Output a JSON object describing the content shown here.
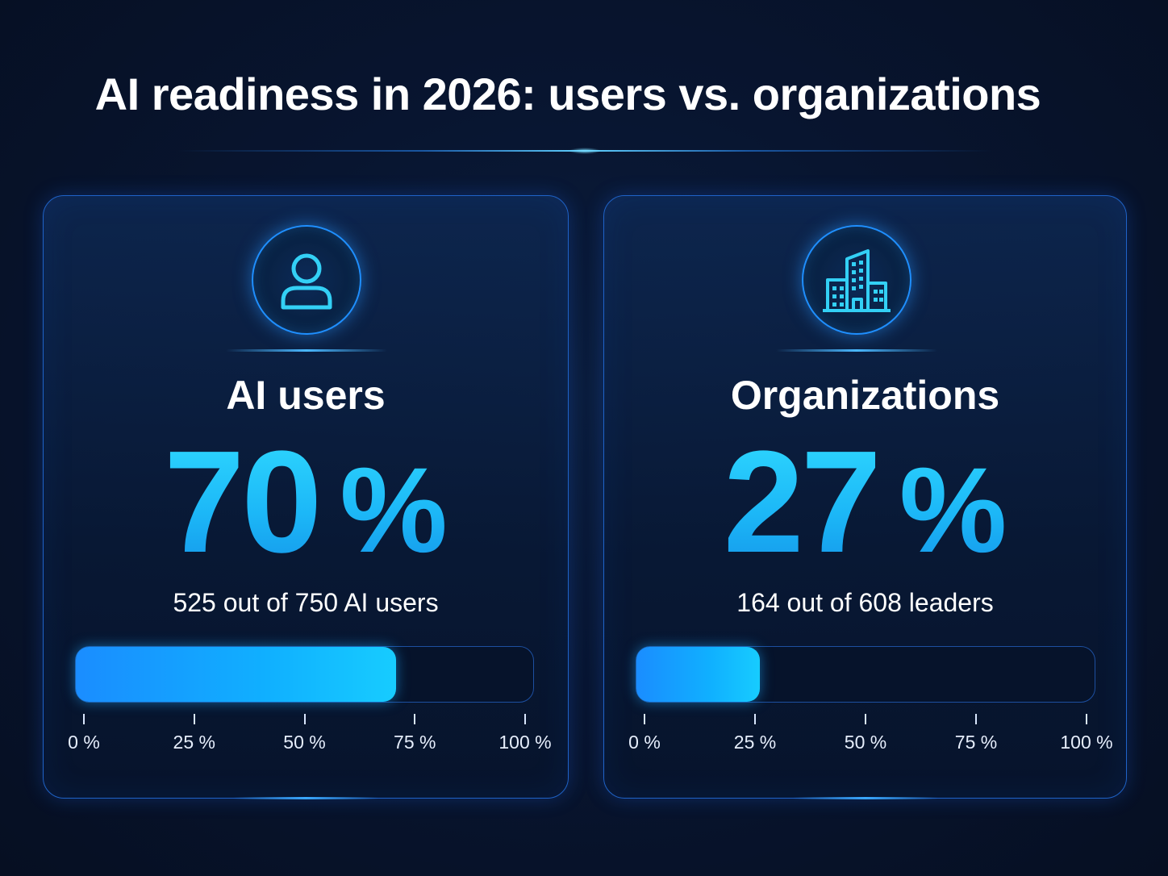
{
  "title": "AI readiness in 2026: users vs. organizations",
  "colors": {
    "accent": "#17c2ff",
    "card_border": "#1f63c8",
    "background": "#071428"
  },
  "chart_data": [
    {
      "type": "bar",
      "orientation": "horizontal",
      "label": "AI users",
      "icon": "user-icon",
      "value": 70,
      "value_display": "70",
      "unit": "%",
      "subtext": "525 out of 750 AI users",
      "count": 525,
      "total": 750,
      "xlim": [
        0,
        100
      ],
      "ticks": [
        0,
        25,
        50,
        75,
        100
      ],
      "tick_labels": [
        "0 %",
        "25 %",
        "50 %",
        "75 %",
        "100 %"
      ]
    },
    {
      "type": "bar",
      "orientation": "horizontal",
      "label": "Organizations",
      "icon": "building-icon",
      "value": 27,
      "value_display": "27",
      "unit": "%",
      "subtext": "164 out of 608 leaders",
      "count": 164,
      "total": 608,
      "xlim": [
        0,
        100
      ],
      "ticks": [
        0,
        25,
        50,
        75,
        100
      ],
      "tick_labels": [
        "0 %",
        "25 %",
        "50 %",
        "75 %",
        "100 %"
      ]
    }
  ]
}
